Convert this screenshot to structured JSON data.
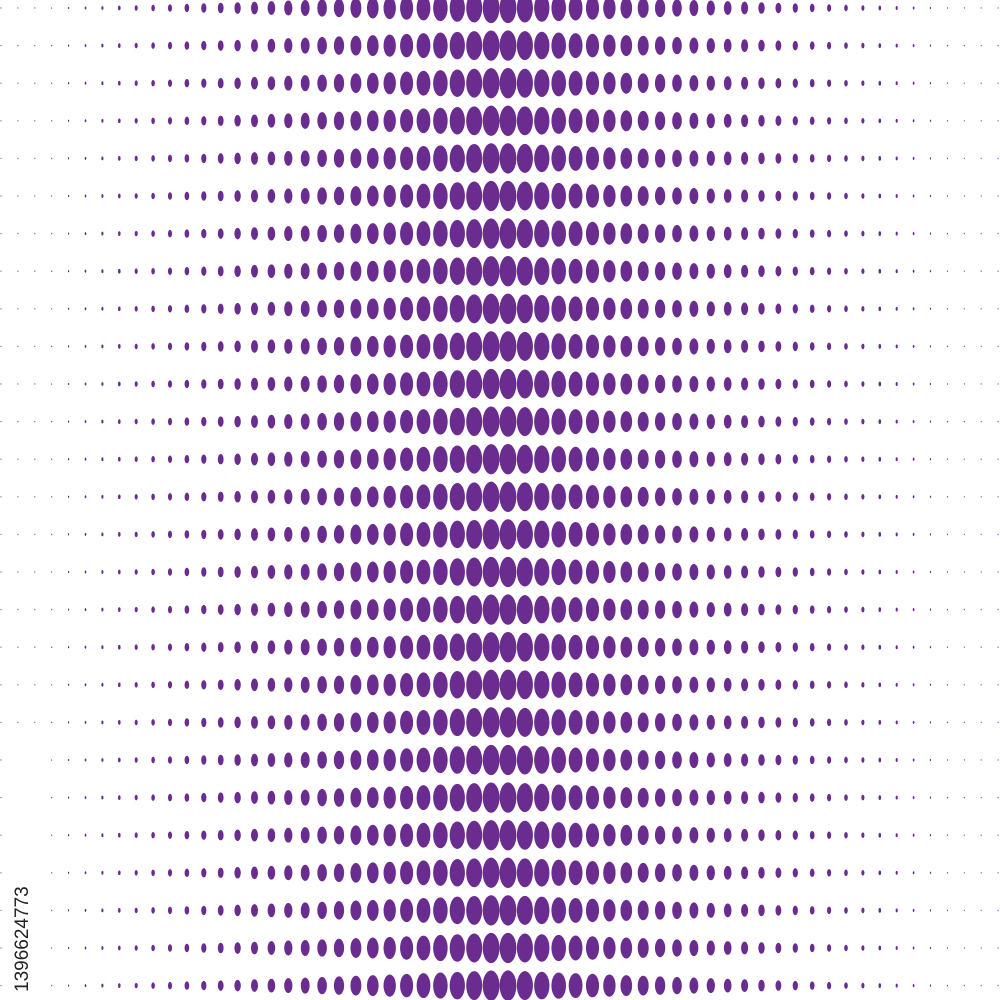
{
  "watermark_id": "1396624773"
}
